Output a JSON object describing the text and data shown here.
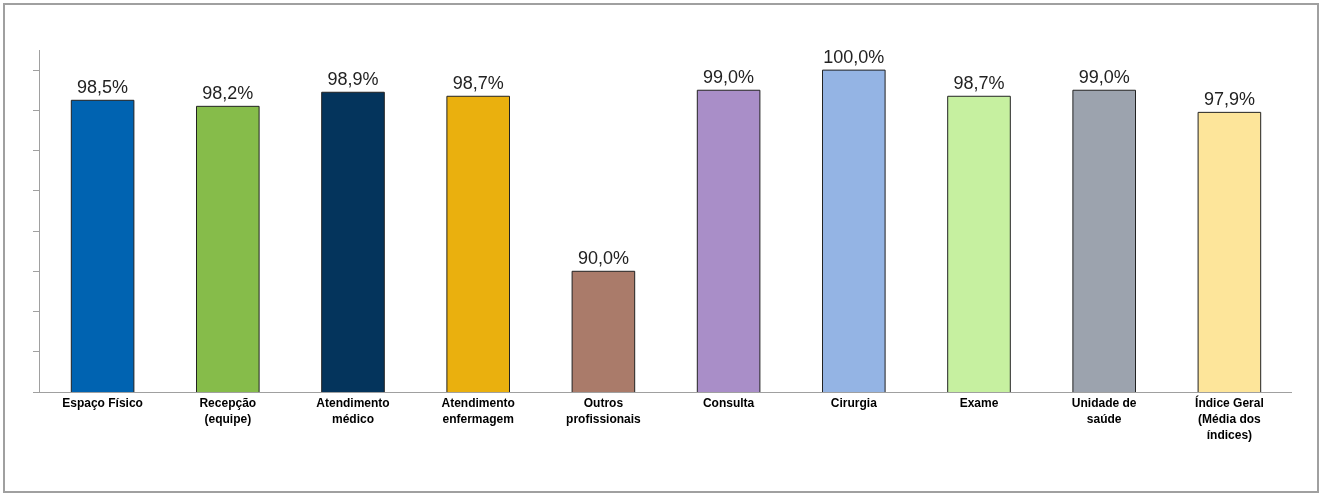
{
  "chart_data": {
    "type": "bar",
    "categories": [
      "Espaço Físico",
      "Recepção\n(equipe)",
      "Atendimento\nmédico",
      "Atendimento\nenfermagem",
      "Outros\nprofissionais",
      "Consulta",
      "Cirurgia",
      "Exame",
      "Unidade de\nsaúde",
      "Índice Geral\n(Média dos\níndices)"
    ],
    "values": [
      98.5,
      98.2,
      98.9,
      98.7,
      90.0,
      99.0,
      100.0,
      98.7,
      99.0,
      97.9
    ],
    "colors": [
      "#0063b1",
      "#86bc4a",
      "#04345c",
      "#eab00e",
      "#aa7b6a",
      "#a98ec8",
      "#94b4e4",
      "#c6f0a0",
      "#9ca3ae",
      "#fde59a"
    ],
    "value_labels": [
      "98,5%",
      "98,2%",
      "98,9%",
      "98,7%",
      "90,0%",
      "99,0%",
      "100,0%",
      "98,7%",
      "99,0%",
      "97,9%"
    ],
    "ylim": [
      84,
      101
    ],
    "yticks": [
      {
        "value": 84,
        "label": null
      },
      {
        "value": 86,
        "label": null
      },
      {
        "value": 88,
        "label": null
      },
      {
        "value": 90,
        "label": null
      },
      {
        "value": 92,
        "label": null
      },
      {
        "value": 94,
        "label": null
      },
      {
        "value": 96,
        "label": null
      },
      {
        "value": 98,
        "label": null
      },
      {
        "value": 100,
        "label": null
      }
    ],
    "tick_labels": "x",
    "legend": false
  }
}
